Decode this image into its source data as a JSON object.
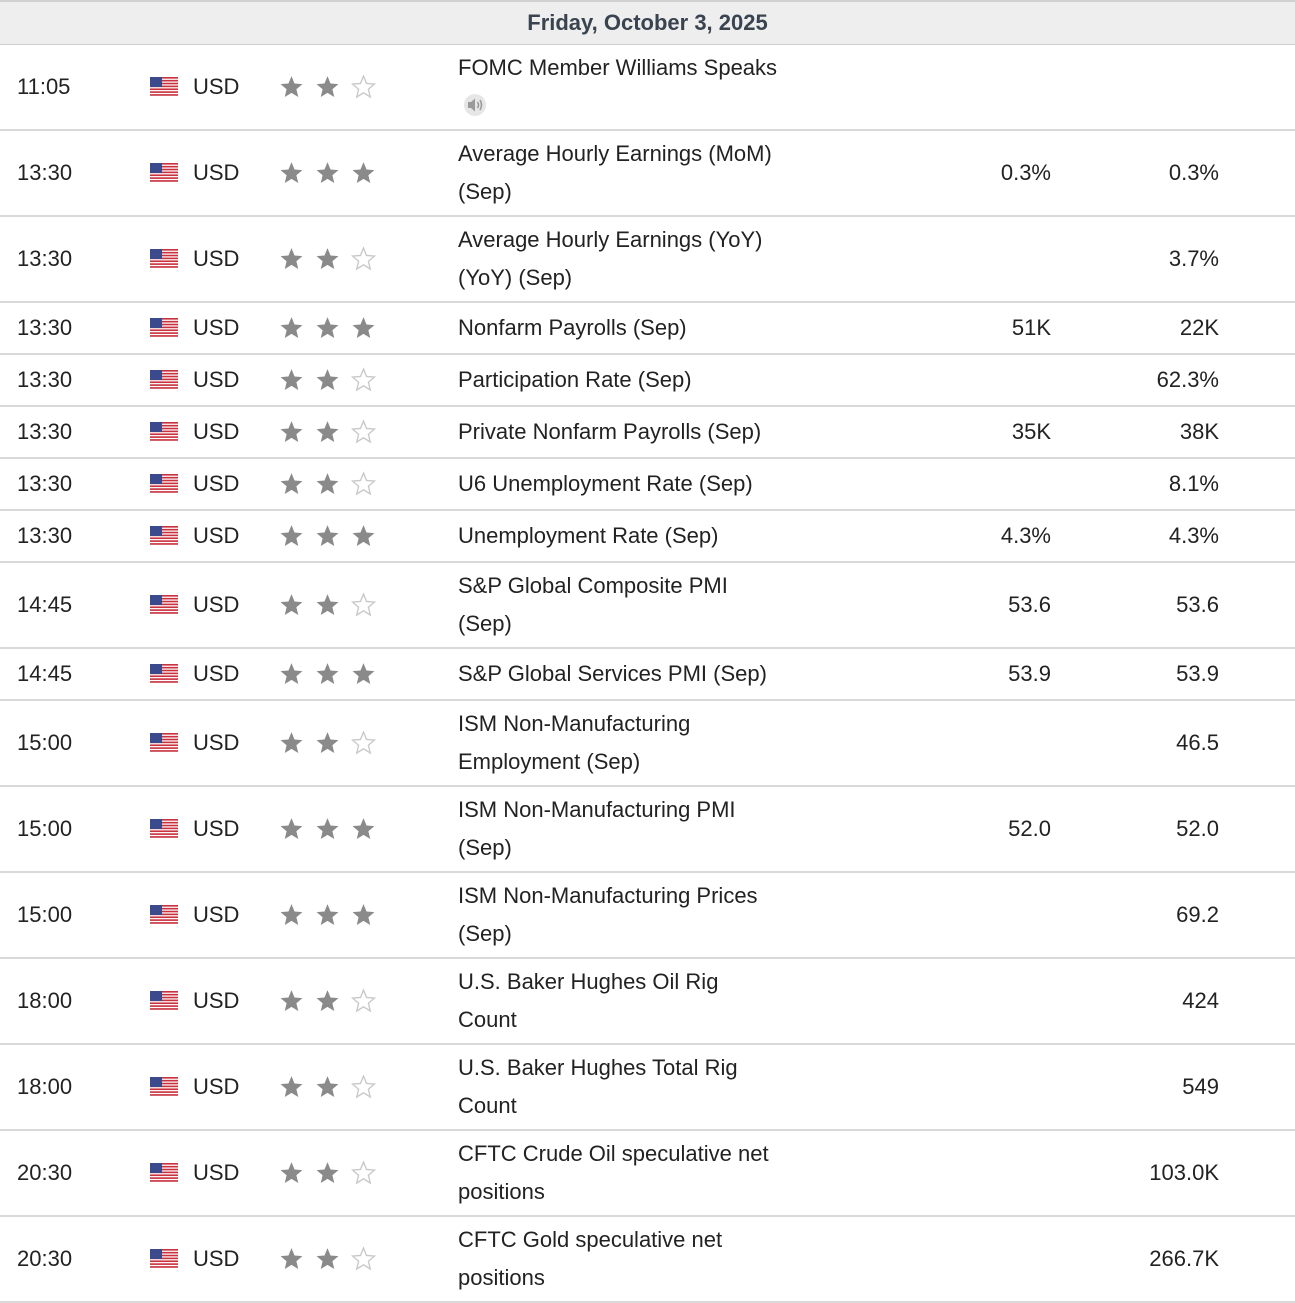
{
  "header": {
    "date": "Friday, October 3, 2025"
  },
  "colors": {
    "star_filled": "#8a8a8a",
    "star_empty": "#c8c8c8",
    "divider": "#d9d9d9",
    "header_bg": "#eeeeee"
  },
  "events": [
    {
      "time": "11:05",
      "currency": "USD",
      "impact": 2,
      "name": "FOMC Member Williams Speaks",
      "name2": "",
      "has_speaker": true,
      "actual": "",
      "forecast": ""
    },
    {
      "time": "13:30",
      "currency": "USD",
      "impact": 3,
      "name": "Average Hourly Earnings (MoM)",
      "name2": "(Sep)",
      "actual": "0.3%",
      "forecast": "0.3%"
    },
    {
      "time": "13:30",
      "currency": "USD",
      "impact": 2,
      "name": "Average Hourly Earnings (YoY)",
      "name2": "(YoY) (Sep)",
      "actual": "",
      "forecast": "3.7%"
    },
    {
      "time": "13:30",
      "currency": "USD",
      "impact": 3,
      "name": "Nonfarm Payrolls (Sep)",
      "name2": "",
      "actual": "51K",
      "forecast": "22K"
    },
    {
      "time": "13:30",
      "currency": "USD",
      "impact": 2,
      "name": "Participation Rate (Sep)",
      "name2": "",
      "actual": "",
      "forecast": "62.3%"
    },
    {
      "time": "13:30",
      "currency": "USD",
      "impact": 2,
      "name": "Private Nonfarm Payrolls (Sep)",
      "name2": "",
      "actual": "35K",
      "forecast": "38K"
    },
    {
      "time": "13:30",
      "currency": "USD",
      "impact": 2,
      "name": "U6 Unemployment Rate (Sep)",
      "name2": "",
      "actual": "",
      "forecast": "8.1%"
    },
    {
      "time": "13:30",
      "currency": "USD",
      "impact": 3,
      "name": "Unemployment Rate (Sep)",
      "name2": "",
      "actual": "4.3%",
      "forecast": "4.3%"
    },
    {
      "time": "14:45",
      "currency": "USD",
      "impact": 2,
      "name": "S&P Global Composite PMI",
      "name2": "(Sep)",
      "actual": "53.6",
      "forecast": "53.6"
    },
    {
      "time": "14:45",
      "currency": "USD",
      "impact": 3,
      "name": "S&P Global Services PMI (Sep)",
      "name2": "",
      "actual": "53.9",
      "forecast": "53.9"
    },
    {
      "time": "15:00",
      "currency": "USD",
      "impact": 2,
      "name": "ISM Non-Manufacturing",
      "name2": "Employment (Sep)",
      "actual": "",
      "forecast": "46.5"
    },
    {
      "time": "15:00",
      "currency": "USD",
      "impact": 3,
      "name": "ISM Non-Manufacturing PMI",
      "name2": "(Sep)",
      "actual": "52.0",
      "forecast": "52.0"
    },
    {
      "time": "15:00",
      "currency": "USD",
      "impact": 3,
      "name": "ISM Non-Manufacturing Prices",
      "name2": "(Sep)",
      "actual": "",
      "forecast": "69.2"
    },
    {
      "time": "18:00",
      "currency": "USD",
      "impact": 2,
      "name": "U.S. Baker Hughes Oil Rig",
      "name2": "Count",
      "actual": "",
      "forecast": "424"
    },
    {
      "time": "18:00",
      "currency": "USD",
      "impact": 2,
      "name": "U.S. Baker Hughes Total Rig",
      "name2": "Count",
      "actual": "",
      "forecast": "549"
    },
    {
      "time": "20:30",
      "currency": "USD",
      "impact": 2,
      "name": "CFTC Crude Oil speculative net",
      "name2": "positions",
      "actual": "",
      "forecast": "103.0K"
    },
    {
      "time": "20:30",
      "currency": "USD",
      "impact": 2,
      "name": "CFTC Gold speculative net",
      "name2": "positions",
      "actual": "",
      "forecast": "266.7K"
    }
  ]
}
